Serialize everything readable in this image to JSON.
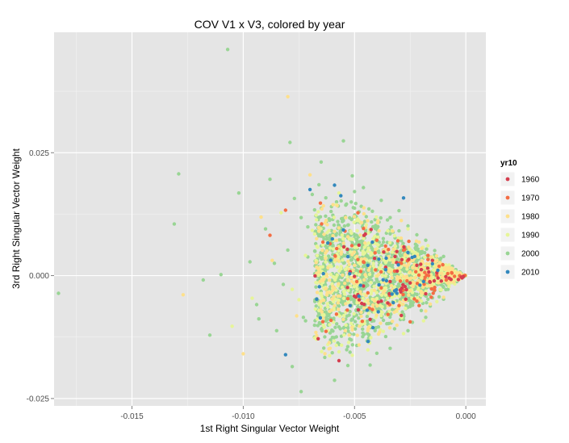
{
  "chart_data": {
    "type": "scatter",
    "title": "COV V1 x V3, colored by year",
    "xlabel": "1st Right Singular Vector Weight",
    "ylabel": "3rd Right Singular Vector Weight",
    "xlim": [
      -0.0185,
      0.0009
    ],
    "ylim": [
      -0.0265,
      0.0495
    ],
    "x_ticks": [
      -0.015,
      -0.01,
      -0.005,
      0.0
    ],
    "x_tick_labels": [
      "-0.015",
      "-0.010",
      "-0.005",
      "0.000"
    ],
    "y_ticks": [
      -0.025,
      0.0,
      0.025
    ],
    "y_tick_labels": [
      "-0.025",
      "0.000",
      "0.025"
    ],
    "grid": true,
    "legend_placement": "right",
    "legend_title": "yr10",
    "series": [
      {
        "name": "1960",
        "color": "#d53e4f",
        "points": [
          [
            -0.0034,
            -0.0012
          ],
          [
            -0.0022,
            0.0021
          ],
          [
            -0.0041,
            0.0035
          ],
          [
            -0.0029,
            -0.0081
          ],
          [
            -0.0013,
            0.0006
          ],
          [
            -0.0046,
            -0.0021
          ],
          [
            -0.0018,
            -0.0037
          ],
          [
            -0.0052,
            0.0008
          ],
          [
            -0.0031,
            0.0049
          ],
          [
            -0.0009,
            -0.0002
          ],
          [
            -0.0038,
            -0.0052
          ],
          [
            -0.0025,
            -0.0015
          ],
          [
            -0.0048,
            0.0062
          ],
          [
            -0.0015,
            0.0031
          ],
          [
            -0.0057,
            -0.0173
          ],
          [
            -0.0027,
            -0.0048
          ],
          [
            -0.0043,
            -0.0089
          ],
          [
            -0.002,
            0.0012
          ],
          [
            -0.0036,
            0.0017
          ],
          [
            -0.0011,
            -0.0011
          ]
        ]
      },
      {
        "name": "1970",
        "color": "#f46d43",
        "points": [
          [
            -0.0088,
            0.0082
          ],
          [
            -0.0081,
            0.0133
          ],
          [
            -0.0029,
            0.0025
          ],
          [
            -0.0044,
            -0.0035
          ],
          [
            -0.0021,
            -0.0061
          ],
          [
            -0.0058,
            0.0055
          ],
          [
            -0.0035,
            -0.0079
          ],
          [
            -0.0017,
            0.0041
          ],
          [
            -0.0049,
            -0.0012
          ],
          [
            -0.0032,
            0.0009
          ],
          [
            -0.0025,
            -0.0094
          ],
          [
            -0.004,
            0.0072
          ],
          [
            -0.0014,
            -0.0024
          ],
          [
            -0.0053,
            -0.0047
          ],
          [
            -0.0028,
            0.0052
          ],
          [
            -0.0038,
            -0.0025
          ],
          [
            -0.0022,
            -0.0052
          ],
          [
            -0.0046,
            0.0028
          ],
          [
            -0.003,
            -0.0061
          ],
          [
            -0.0012,
            0.0019
          ],
          [
            -0.0061,
            0.0065
          ],
          [
            -0.0042,
            -0.0069
          ]
        ]
      },
      {
        "name": "1980",
        "color": "#fee08b",
        "points": [
          [
            -0.008,
            0.0364
          ],
          [
            -0.007,
            0.0205
          ],
          [
            -0.0092,
            0.0119
          ],
          [
            -0.0087,
            0.0031
          ],
          [
            -0.0076,
            -0.0082
          ],
          [
            -0.0064,
            0.0142
          ],
          [
            -0.0059,
            -0.0025
          ],
          [
            -0.01,
            -0.0159
          ],
          [
            -0.0053,
            0.0079
          ],
          [
            -0.0048,
            -0.0141
          ],
          [
            -0.0045,
            0.0098
          ],
          [
            -0.0041,
            -0.0052
          ],
          [
            -0.0037,
            0.0051
          ],
          [
            -0.0033,
            -0.0093
          ],
          [
            -0.0029,
            0.0112
          ],
          [
            -0.0025,
            -0.0031
          ],
          [
            -0.0021,
            0.0068
          ],
          [
            -0.0018,
            -0.0072
          ],
          [
            -0.0014,
            0.0028
          ],
          [
            -0.001,
            -0.0044
          ],
          [
            -0.0006,
            0.0014
          ],
          [
            -0.0003,
            -0.0008
          ],
          [
            -0.0127,
            -0.0039
          ],
          [
            -0.0067,
            -0.0122
          ],
          [
            -0.0056,
            0.0044
          ],
          [
            -0.0044,
            -0.0112
          ],
          [
            -0.0039,
            0.0091
          ],
          [
            -0.0031,
            -0.0101
          ],
          [
            -0.0027,
            0.0042
          ],
          [
            -0.0016,
            -0.0058
          ],
          [
            -0.005,
            0.0021
          ],
          [
            -0.0035,
            -0.0061
          ],
          [
            -0.0023,
            0.0036
          ],
          [
            -0.0047,
            -0.0083
          ],
          [
            -0.0061,
            -0.0148
          ],
          [
            -0.0054,
            0.0118
          ]
        ]
      },
      {
        "name": "1990",
        "color": "#e6f598",
        "points": [
          [
            -0.0083,
            0.0128
          ],
          [
            -0.0075,
            -0.0049
          ],
          [
            -0.0096,
            -0.0046
          ],
          [
            -0.0069,
            0.0092
          ],
          [
            -0.0062,
            -0.0112
          ],
          [
            -0.0058,
            0.0033
          ],
          [
            -0.0052,
            -0.0021
          ],
          [
            -0.0049,
            0.0112
          ],
          [
            -0.0044,
            -0.0151
          ],
          [
            -0.004,
            0.0064
          ],
          [
            -0.0036,
            -0.0025
          ],
          [
            -0.0032,
            0.0081
          ],
          [
            -0.0028,
            -0.0118
          ],
          [
            -0.0024,
            0.0049
          ],
          [
            -0.002,
            -0.0035
          ],
          [
            -0.0017,
            0.0061
          ],
          [
            -0.0013,
            -0.0053
          ],
          [
            -0.0009,
            0.0022
          ],
          [
            -0.0005,
            -0.0017
          ],
          [
            -0.0066,
            -0.0071
          ],
          [
            -0.0057,
            0.0168
          ],
          [
            -0.0051,
            -0.0162
          ],
          [
            -0.0046,
            0.0044
          ],
          [
            -0.0038,
            -0.0081
          ],
          [
            -0.0034,
            0.0032
          ],
          [
            -0.003,
            -0.0042
          ],
          [
            -0.0026,
            0.0095
          ],
          [
            -0.0019,
            -0.0092
          ],
          [
            -0.0015,
            0.0038
          ],
          [
            -0.0011,
            -0.0029
          ],
          [
            -0.0072,
            0.0041
          ],
          [
            -0.0063,
            -0.0024
          ],
          [
            -0.0055,
            0.0074
          ],
          [
            -0.0042,
            -0.0048
          ],
          [
            -0.0078,
            -0.0028
          ],
          [
            -0.0105,
            -0.0103
          ]
        ]
      },
      {
        "name": "2000",
        "color": "#99d594",
        "points": [
          [
            -0.0107,
            0.046
          ],
          [
            -0.0183,
            -0.0036
          ],
          [
            -0.0131,
            0.0105
          ],
          [
            -0.0129,
            0.0207
          ],
          [
            -0.0115,
            -0.0121
          ],
          [
            -0.0118,
            -0.0009
          ],
          [
            -0.0102,
            0.0168
          ],
          [
            -0.0094,
            -0.0059
          ],
          [
            -0.0088,
            0.0196
          ],
          [
            -0.0086,
            0.0025
          ],
          [
            -0.0082,
            -0.0018
          ],
          [
            -0.0079,
            0.0271
          ],
          [
            -0.0077,
            0.0157
          ],
          [
            -0.0074,
            -0.0236
          ],
          [
            -0.0071,
            0.0099
          ],
          [
            -0.0068,
            -0.0125
          ],
          [
            -0.0065,
            0.0231
          ],
          [
            -0.0062,
            0.0057
          ],
          [
            -0.0059,
            -0.0213
          ],
          [
            -0.0055,
            0.0274
          ],
          [
            -0.0053,
            -0.0183
          ],
          [
            -0.0051,
            0.0203
          ],
          [
            -0.0049,
            -0.0142
          ],
          [
            -0.0046,
            0.0179
          ],
          [
            -0.0044,
            -0.0099
          ],
          [
            -0.0042,
            0.0131
          ],
          [
            -0.004,
            -0.0158
          ],
          [
            -0.0038,
            0.0153
          ],
          [
            -0.0036,
            -0.0124
          ],
          [
            -0.0034,
            0.0118
          ],
          [
            -0.0032,
            -0.0108
          ],
          [
            -0.003,
            0.0132
          ],
          [
            -0.0028,
            -0.0089
          ],
          [
            -0.0026,
            0.0101
          ],
          [
            -0.0024,
            -0.0095
          ],
          [
            -0.0022,
            0.0083
          ],
          [
            -0.002,
            -0.0071
          ],
          [
            -0.0018,
            0.0072
          ],
          [
            -0.0016,
            -0.0062
          ],
          [
            -0.0014,
            0.0051
          ],
          [
            -0.0012,
            -0.0043
          ],
          [
            -0.001,
            0.0039
          ],
          [
            -0.0008,
            -0.0028
          ],
          [
            -0.0006,
            0.0019
          ],
          [
            -0.0004,
            -0.0012
          ],
          [
            -0.0002,
            0.0004
          ],
          [
            -0.0065,
            -0.0018
          ],
          [
            -0.0061,
            0.0078
          ],
          [
            -0.0057,
            -0.0062
          ],
          [
            -0.0054,
            0.0041
          ],
          [
            -0.005,
            -0.0034
          ],
          [
            -0.0047,
            0.0065
          ],
          [
            -0.0043,
            -0.0051
          ],
          [
            -0.0039,
            0.0047
          ],
          [
            -0.0035,
            -0.0035
          ],
          [
            -0.0031,
            0.0058
          ],
          [
            -0.0027,
            -0.0041
          ],
          [
            -0.0023,
            0.0036
          ],
          [
            -0.0019,
            -0.0027
          ],
          [
            -0.0015,
            0.0021
          ],
          [
            -0.0011,
            -0.0014
          ],
          [
            -0.0007,
            0.0008
          ],
          [
            -0.0071,
            0.0038
          ],
          [
            -0.0067,
            -0.0047
          ],
          [
            -0.0063,
            0.0121
          ],
          [
            -0.0058,
            -0.0098
          ],
          [
            -0.0053,
            0.0012
          ],
          [
            -0.0048,
            -0.0071
          ],
          [
            -0.0045,
            0.0089
          ],
          [
            -0.0041,
            -0.0015
          ],
          [
            -0.0037,
            0.0012
          ],
          [
            -0.0033,
            -0.0069
          ],
          [
            -0.0029,
            0.0024
          ],
          [
            -0.0025,
            -0.0062
          ],
          [
            -0.0021,
            0.0014
          ],
          [
            -0.0017,
            -0.0018
          ],
          [
            -0.0013,
            0.0029
          ],
          [
            -0.0009,
            -0.0009
          ],
          [
            -0.009,
            0.0095
          ],
          [
            -0.0085,
            -0.0112
          ],
          [
            -0.008,
            0.0052
          ],
          [
            -0.0073,
            -0.0085
          ],
          [
            -0.0069,
            0.0165
          ],
          [
            -0.006,
            -0.0157
          ],
          [
            -0.0056,
            0.0152
          ],
          [
            -0.0052,
            -0.0119
          ],
          [
            -0.0047,
            0.0141
          ],
          [
            -0.0043,
            -0.0182
          ],
          [
            -0.0039,
            0.0109
          ],
          [
            -0.0034,
            -0.0148
          ],
          [
            -0.003,
            0.0091
          ],
          [
            -0.0026,
            -0.0112
          ],
          [
            -0.0022,
            0.0061
          ],
          [
            -0.0018,
            -0.0085
          ],
          [
            -0.0014,
            0.0042
          ],
          [
            -0.001,
            -0.0048
          ],
          [
            -0.0074,
            0.0118
          ],
          [
            -0.0064,
            0.0012
          ],
          [
            -0.0056,
            -0.0078
          ],
          [
            -0.0049,
            0.0025
          ],
          [
            -0.0045,
            0.0032
          ],
          [
            -0.0041,
            0.0078
          ],
          [
            -0.0037,
            -0.0091
          ],
          [
            -0.0033,
            0.0021
          ],
          [
            -0.0029,
            0.0071
          ],
          [
            -0.0025,
            -0.0019
          ],
          [
            -0.0021,
            0.0048
          ],
          [
            -0.0017,
            -0.0048
          ],
          [
            -0.0013,
            0.0012
          ],
          [
            -0.011,
            0.0002
          ],
          [
            -0.0097,
            0.0028
          ],
          [
            -0.0093,
            -0.0088
          ],
          [
            -0.0078,
            -0.0185
          ],
          [
            -0.0072,
            -0.0092
          ],
          [
            -0.0066,
            0.0185
          ],
          [
            -0.0061,
            -0.0055
          ],
          [
            -0.0057,
            0.0102
          ],
          [
            -0.005,
            0.0171
          ],
          [
            -0.0046,
            -0.0046
          ],
          [
            -0.0042,
            0.0044
          ],
          [
            -0.0038,
            -0.0058
          ],
          [
            -0.0034,
            0.0085
          ],
          [
            -0.003,
            -0.0025
          ],
          [
            -0.0026,
            0.0055
          ],
          [
            -0.0022,
            -0.0038
          ]
        ]
      },
      {
        "name": "2010",
        "color": "#3288bd",
        "points": [
          [
            -0.0081,
            -0.0161
          ],
          [
            -0.007,
            0.0175
          ],
          [
            -0.0059,
            0.0184
          ],
          [
            -0.0055,
            0.0093
          ],
          [
            -0.0048,
            -0.0042
          ],
          [
            -0.0042,
            0.0068
          ],
          [
            -0.0036,
            0.0012
          ],
          [
            -0.0032,
            -0.0031
          ],
          [
            -0.0028,
            0.0158
          ],
          [
            -0.0023,
            0.0039
          ],
          [
            -0.0019,
            -0.0012
          ],
          [
            -0.0015,
            0.0024
          ],
          [
            -0.0064,
            0.0004
          ],
          [
            -0.0052,
            -0.0061
          ],
          [
            -0.0044,
            0.0021
          ],
          [
            -0.0039,
            -0.0019
          ],
          [
            -0.0026,
            0.0047
          ],
          [
            -0.0067,
            -0.0048
          ]
        ]
      }
    ]
  }
}
